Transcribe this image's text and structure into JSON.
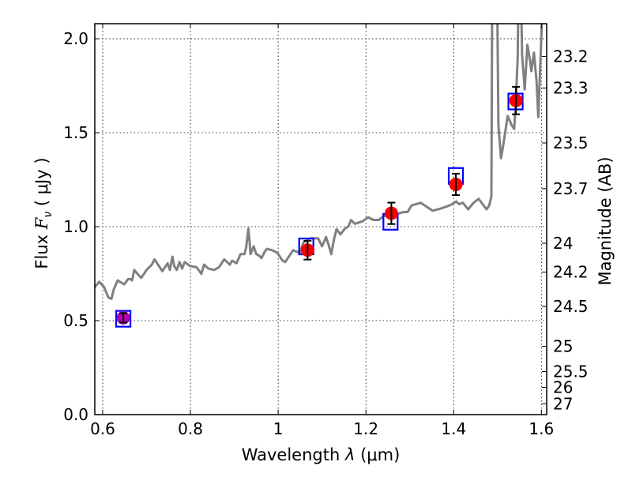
{
  "chart_data": {
    "type": "scatter",
    "title": "",
    "xlabel": "Wavelength  λ (μm)",
    "xlabel_parts": {
      "prefix": "Wavelength  ",
      "symbol": "λ",
      "unit": " (μm)"
    },
    "ylabel": "Flux  F_ν ( μJy )",
    "ylabel_parts": {
      "prefix": "Flux  ",
      "symbol": "F",
      "subscript": "ν",
      "unit": "  ( μJy )"
    },
    "y2label": "Magnitude (AB)",
    "xlim": [
      0.582,
      1.612
    ],
    "ylim": [
      0.0,
      2.08
    ],
    "grid": true,
    "xticks": [
      0.6,
      0.8,
      1.0,
      1.2,
      1.4,
      1.6
    ],
    "xtick_labels": [
      "0.6",
      "0.8",
      "1",
      "1.2",
      "1.4",
      "1.6"
    ],
    "yticks": [
      0.0,
      0.5,
      1.0,
      1.5,
      2.0
    ],
    "ytick_labels": [
      "0.0",
      "0.5",
      "1.0",
      "1.5",
      "2.0"
    ],
    "y2_zeropoint": 23.9,
    "y2ticks": [
      23.2,
      23.3,
      23.5,
      23.7,
      24,
      24.2,
      24.5,
      25,
      25.5,
      26,
      27
    ],
    "y2tick_labels": [
      "23.2",
      "23.3",
      "23.5",
      "23.7",
      "24",
      "24.2",
      "24.5",
      "25",
      "25.5",
      "26",
      "27"
    ],
    "colors": {
      "spectrum": "#808080",
      "observed": "#ff0000",
      "observed_first": "#b000b0",
      "model": "#0000ff",
      "errorbar": "#000000"
    },
    "series": [
      {
        "name": "spectrum",
        "kind": "line",
        "x": [
          0.58,
          0.592,
          0.603,
          0.613,
          0.62,
          0.625,
          0.634,
          0.649,
          0.658,
          0.664,
          0.667,
          0.672,
          0.682,
          0.688,
          0.7,
          0.712,
          0.718,
          0.724,
          0.736,
          0.748,
          0.753,
          0.759,
          0.763,
          0.769,
          0.775,
          0.781,
          0.787,
          0.799,
          0.814,
          0.825,
          0.831,
          0.841,
          0.854,
          0.865,
          0.877,
          0.89,
          0.895,
          0.905,
          0.914,
          0.923,
          0.927,
          0.932,
          0.935,
          0.937,
          0.944,
          0.95,
          0.956,
          0.962,
          0.968,
          0.974,
          0.986,
          0.998,
          1.01,
          1.016,
          1.028,
          1.034,
          1.049,
          1.058,
          1.073,
          1.091,
          1.1,
          1.109,
          1.115,
          1.121,
          1.127,
          1.133,
          1.142,
          1.151,
          1.16,
          1.166,
          1.175,
          1.193,
          1.205,
          1.217,
          1.229,
          1.241,
          1.265,
          1.286,
          1.295,
          1.304,
          1.325,
          1.343,
          1.352,
          1.37,
          1.391,
          1.406,
          1.412,
          1.421,
          1.433,
          1.445,
          1.457,
          1.475,
          1.481,
          1.486,
          1.488,
          1.499,
          1.502,
          1.508,
          1.514,
          1.523,
          1.532,
          1.538,
          1.542,
          1.546,
          1.548,
          1.553,
          1.556,
          1.562,
          1.568,
          1.574,
          1.577,
          1.583,
          1.589,
          1.593,
          1.599,
          1.604
        ],
        "y": [
          0.672,
          0.707,
          0.679,
          0.623,
          0.616,
          0.665,
          0.714,
          0.693,
          0.721,
          0.721,
          0.714,
          0.77,
          0.742,
          0.728,
          0.77,
          0.798,
          0.826,
          0.805,
          0.763,
          0.805,
          0.77,
          0.84,
          0.791,
          0.77,
          0.812,
          0.777,
          0.812,
          0.791,
          0.784,
          0.749,
          0.798,
          0.777,
          0.77,
          0.784,
          0.826,
          0.798,
          0.819,
          0.805,
          0.854,
          0.854,
          0.889,
          0.99,
          0.917,
          0.854,
          0.896,
          0.854,
          0.847,
          0.833,
          0.861,
          0.882,
          0.875,
          0.861,
          0.819,
          0.812,
          0.854,
          0.875,
          0.861,
          0.917,
          0.938,
          0.938,
          0.896,
          0.945,
          0.903,
          0.854,
          0.931,
          0.987,
          0.959,
          0.987,
          1.001,
          1.036,
          1.015,
          1.029,
          1.05,
          1.036,
          1.036,
          1.057,
          1.064,
          1.078,
          1.078,
          1.113,
          1.127,
          1.099,
          1.085,
          1.096,
          1.113,
          1.134,
          1.12,
          1.127,
          1.092,
          1.127,
          1.148,
          1.092,
          1.113,
          1.162,
          2.3,
          2.3,
          1.54,
          1.364,
          1.449,
          1.589,
          1.54,
          1.52,
          1.688,
          1.898,
          2.3,
          2.3,
          1.912,
          1.73,
          1.968,
          1.884,
          1.828,
          1.926,
          1.772,
          1.583,
          1.961,
          2.3
        ]
      },
      {
        "name": "observed",
        "kind": "errorbar",
        "x": [
          0.647,
          1.067,
          1.258,
          1.405,
          1.542
        ],
        "y": [
          0.515,
          0.875,
          1.071,
          1.225,
          1.671
        ],
        "yerr": [
          0.025,
          0.05,
          0.057,
          0.057,
          0.073
        ]
      },
      {
        "name": "model",
        "kind": "square-marker",
        "x": [
          0.647,
          1.064,
          1.256,
          1.405,
          1.541
        ],
        "y": [
          0.51,
          0.895,
          1.026,
          1.27,
          1.666
        ]
      }
    ]
  }
}
